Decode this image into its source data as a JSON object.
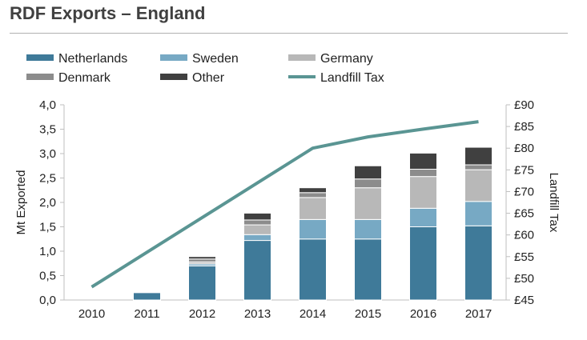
{
  "chart_data": {
    "type": "bar",
    "title": "RDF Exports – England",
    "categories": [
      "2010",
      "2011",
      "2012",
      "2013",
      "2014",
      "2015",
      "2016",
      "2017"
    ],
    "series": [
      {
        "name": "Netherlands",
        "color": "#3f7a99",
        "values": [
          0.0,
          0.15,
          0.7,
          1.22,
          1.25,
          1.25,
          1.5,
          1.52
        ]
      },
      {
        "name": "Sweden",
        "color": "#77a9c4",
        "values": [
          0.0,
          0.0,
          0.04,
          0.12,
          0.4,
          0.4,
          0.38,
          0.5
        ]
      },
      {
        "name": "Germany",
        "color": "#b8b8b8",
        "values": [
          0.0,
          0.0,
          0.04,
          0.2,
          0.45,
          0.65,
          0.65,
          0.65
        ]
      },
      {
        "name": "Denmark",
        "color": "#8c8c8c",
        "values": [
          0.0,
          0.0,
          0.06,
          0.1,
          0.1,
          0.18,
          0.15,
          0.1
        ]
      },
      {
        "name": "Other",
        "color": "#404040",
        "values": [
          0.0,
          0.0,
          0.05,
          0.14,
          0.1,
          0.27,
          0.33,
          0.36
        ]
      }
    ],
    "line_series": {
      "name": "Landfill Tax",
      "color": "#5a9593",
      "values": [
        48,
        56,
        64,
        72,
        80,
        82.6,
        84.4,
        86.1
      ]
    },
    "ylabel": "Mt Exported",
    "ylim": [
      0,
      4
    ],
    "yticks": [
      "0,0",
      "0,5",
      "1,0",
      "1,5",
      "2,0",
      "2,5",
      "3,0",
      "3,5",
      "4,0"
    ],
    "y2label": "Landfill Tax",
    "y2lim": [
      45,
      90
    ],
    "y2ticks": [
      "£45",
      "£50",
      "£55",
      "£60",
      "£65",
      "£70",
      "£75",
      "£80",
      "£85",
      "£90"
    ],
    "legend_placement": "top"
  }
}
